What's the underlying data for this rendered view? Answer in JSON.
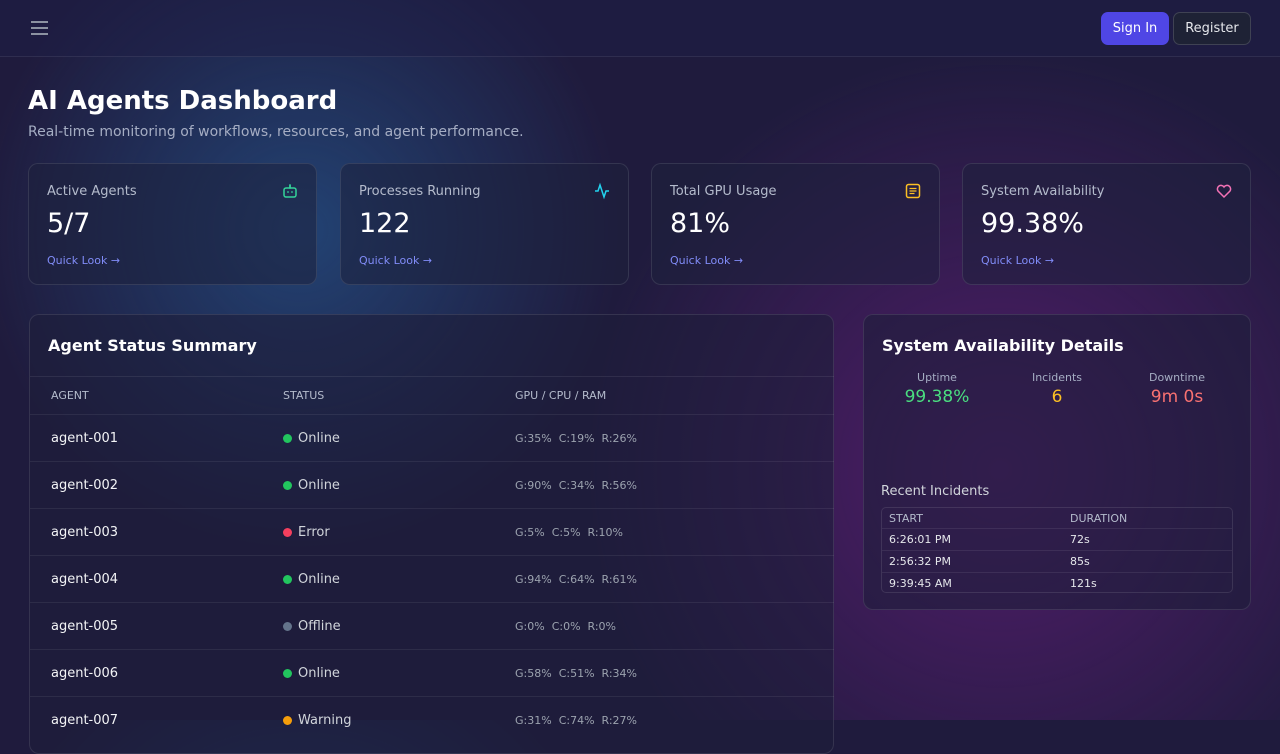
{
  "nav": {
    "sign_in": "Sign In",
    "register": "Register"
  },
  "header": {
    "title": "AI Agents Dashboard",
    "subtitle": "Real-time monitoring of workflows, resources, and agent performance."
  },
  "cards": [
    {
      "label": "Active Agents",
      "value": "5/7",
      "link": "Quick Look →"
    },
    {
      "label": "Processes Running",
      "value": "122",
      "link": "Quick Look →"
    },
    {
      "label": "Total GPU Usage",
      "value": "81%",
      "link": "Quick Look →"
    },
    {
      "label": "System Availability",
      "value": "99.38%",
      "link": "Quick Look →"
    }
  ],
  "agent_table": {
    "title": "Agent Status Summary",
    "columns": [
      "AGENT",
      "STATUS",
      "GPU / CPU / RAM"
    ],
    "rows": [
      {
        "agent": "agent-001",
        "status": "Online",
        "color": "#22c55e",
        "gpu": "G:35%",
        "cpu": "C:19%",
        "ram": "R:26%"
      },
      {
        "agent": "agent-002",
        "status": "Online",
        "color": "#22c55e",
        "gpu": "G:90%",
        "cpu": "C:34%",
        "ram": "R:56%"
      },
      {
        "agent": "agent-003",
        "status": "Error",
        "color": "#f43f5e",
        "gpu": "G:5%",
        "cpu": "C:5%",
        "ram": "R:10%"
      },
      {
        "agent": "agent-004",
        "status": "Online",
        "color": "#22c55e",
        "gpu": "G:94%",
        "cpu": "C:64%",
        "ram": "R:61%"
      },
      {
        "agent": "agent-005",
        "status": "Offline",
        "color": "#64748b",
        "gpu": "G:0%",
        "cpu": "C:0%",
        "ram": "R:0%"
      },
      {
        "agent": "agent-006",
        "status": "Online",
        "color": "#22c55e",
        "gpu": "G:58%",
        "cpu": "C:51%",
        "ram": "R:34%"
      },
      {
        "agent": "agent-007",
        "status": "Warning",
        "color": "#f59e0b",
        "gpu": "G:31%",
        "cpu": "C:74%",
        "ram": "R:27%"
      }
    ]
  },
  "availability": {
    "title": "System Availability Details",
    "stats": [
      {
        "label": "Uptime",
        "value": "99.38%",
        "color": "#4ade80"
      },
      {
        "label": "Incidents",
        "value": "6",
        "color": "#fbbf24"
      },
      {
        "label": "Downtime",
        "value": "9m 0s",
        "color": "#f87171"
      }
    ],
    "incidents_title": "Recent Incidents",
    "columns": [
      "START",
      "DURATION"
    ],
    "rows": [
      [
        "6:26:01 PM",
        "72s"
      ],
      [
        "2:56:32 PM",
        "85s"
      ],
      [
        "9:39:45 AM",
        "121s"
      ]
    ]
  }
}
